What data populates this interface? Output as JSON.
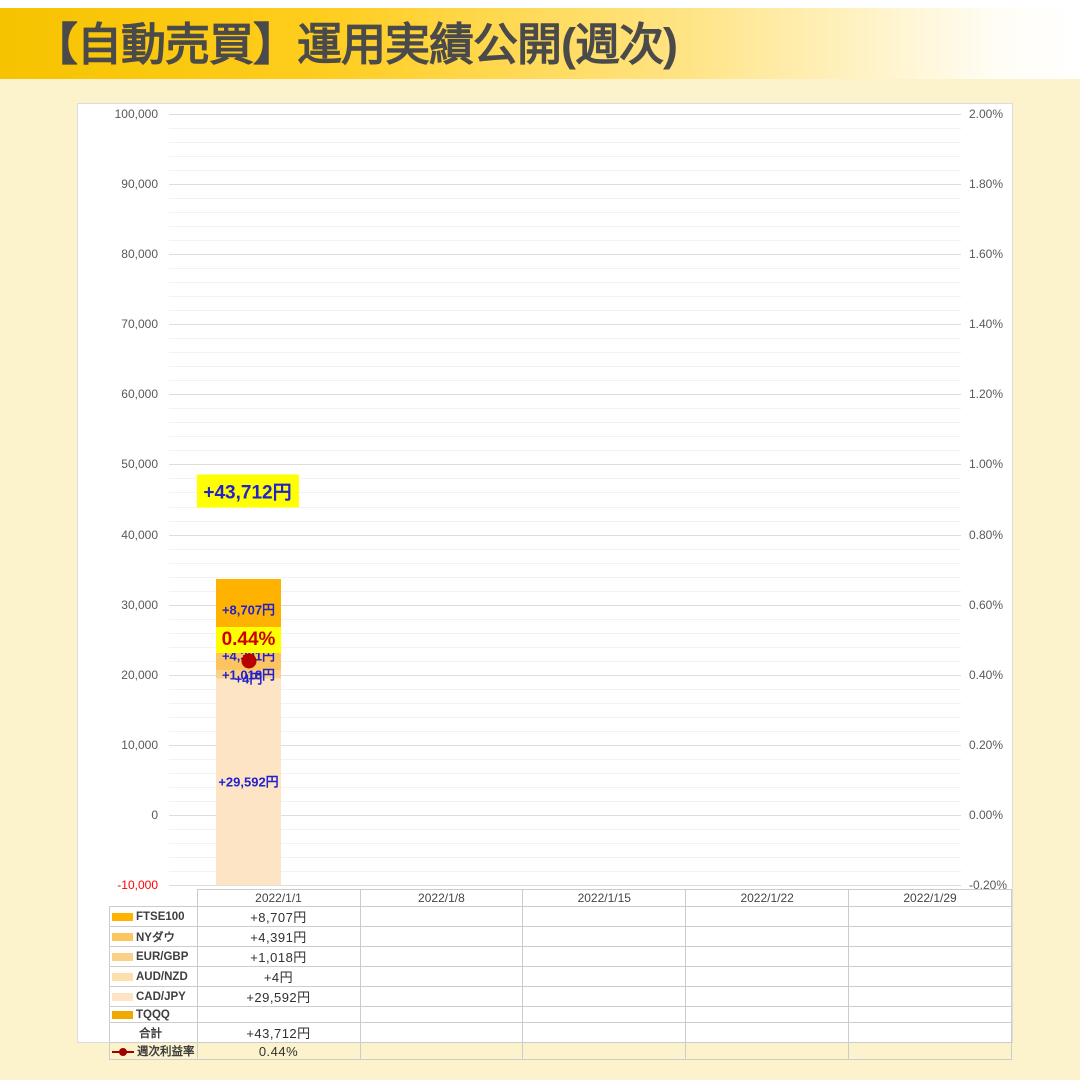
{
  "page": {
    "title": "【自動売買】運用実績公開(週次)"
  },
  "colors": {
    "page_background": "#FCF2CC",
    "band_gold": "#F6C300",
    "highlight_yellow": "#FFFF00",
    "label_blue": "#2222CC",
    "rate_red": "#CC0000",
    "dot_red": "#B80000",
    "negative_red": "#FF0000"
  },
  "chart_data": {
    "type": "bar",
    "stacked": true,
    "title": "",
    "categories": [
      "2022/1/1",
      "2022/1/8",
      "2022/1/15",
      "2022/1/22",
      "2022/1/29"
    ],
    "series": [
      {
        "name": "FTSE100",
        "color": "#FFB300",
        "data": [
          8707,
          null,
          null,
          null,
          null
        ],
        "display": [
          "+8,707円",
          "",
          "",
          "",
          ""
        ]
      },
      {
        "name": "NYダウ",
        "color": "#FDC55F",
        "data": [
          4391,
          null,
          null,
          null,
          null
        ],
        "display": [
          "+4,391円",
          "",
          "",
          "",
          ""
        ]
      },
      {
        "name": "EUR/GBP",
        "color": "#FBD089",
        "data": [
          1018,
          null,
          null,
          null,
          null
        ],
        "display": [
          "+1,018円",
          "",
          "",
          "",
          ""
        ]
      },
      {
        "name": "AUD/NZD",
        "color": "#FCE0AC",
        "data": [
          4,
          null,
          null,
          null,
          null
        ],
        "display": [
          "+4円",
          "",
          "",
          "",
          ""
        ]
      },
      {
        "name": "CAD/JPY",
        "color": "#FDE4C4",
        "data": [
          29592,
          null,
          null,
          null,
          null
        ],
        "display": [
          "+29,592円",
          "",
          "",
          "",
          ""
        ]
      },
      {
        "name": "TQQQ",
        "color": "#EFA900",
        "data": [
          null,
          null,
          null,
          null,
          null
        ],
        "display": [
          "",
          "",
          "",
          "",
          ""
        ]
      }
    ],
    "total": {
      "value": 43712,
      "display": "+43,712円"
    },
    "rate_series": {
      "name": "週次利益率",
      "color": "#B80000",
      "data": [
        0.44,
        null,
        null,
        null,
        null
      ],
      "display": "0.44%"
    },
    "left_axis": {
      "min": -10000,
      "max": 100000,
      "major_step": 10000,
      "minor_step": 2000,
      "ticks": [
        "100,000",
        "90,000",
        "80,000",
        "70,000",
        "60,000",
        "50,000",
        "40,000",
        "30,000",
        "20,000",
        "10,000",
        "0",
        "-10,000"
      ]
    },
    "right_axis": {
      "min": -0.2,
      "max": 2.0,
      "ticks": [
        "2.00%",
        "1.80%",
        "1.60%",
        "1.40%",
        "1.20%",
        "1.00%",
        "0.80%",
        "0.60%",
        "0.40%",
        "0.20%",
        "0.00%",
        "-0.20%"
      ]
    },
    "grid": true,
    "legend_position": "table-bottom"
  },
  "table": {
    "corner": "",
    "header": [
      "2022/1/1",
      "2022/1/8",
      "2022/1/15",
      "2022/1/22",
      "2022/1/29"
    ],
    "rows": [
      {
        "label": "FTSE100",
        "swatch": "#FFB300",
        "marker": "box",
        "values": [
          "+8,707円",
          "",
          "",
          "",
          ""
        ]
      },
      {
        "label": "NYダウ",
        "swatch": "#FDC55F",
        "marker": "box",
        "values": [
          "+4,391円",
          "",
          "",
          "",
          ""
        ]
      },
      {
        "label": "EUR/GBP",
        "swatch": "#FBD089",
        "marker": "box",
        "values": [
          "+1,018円",
          "",
          "",
          "",
          ""
        ]
      },
      {
        "label": "AUD/NZD",
        "swatch": "#FCE0AC",
        "marker": "box",
        "values": [
          "+4円",
          "",
          "",
          "",
          ""
        ]
      },
      {
        "label": "CAD/JPY",
        "swatch": "#FDE4C4",
        "marker": "box",
        "values": [
          "+29,592円",
          "",
          "",
          "",
          ""
        ]
      },
      {
        "label": "TQQQ",
        "swatch": "#EFA900",
        "marker": "box",
        "values": [
          "",
          "",
          "",
          "",
          ""
        ]
      },
      {
        "label": "合計",
        "swatch": null,
        "marker": "none",
        "values": [
          "+43,712円",
          "",
          "",
          "",
          ""
        ]
      },
      {
        "label": "週次利益率",
        "swatch": "#A00000",
        "marker": "line",
        "values": [
          "0.44%",
          "",
          "",
          "",
          ""
        ]
      }
    ]
  }
}
